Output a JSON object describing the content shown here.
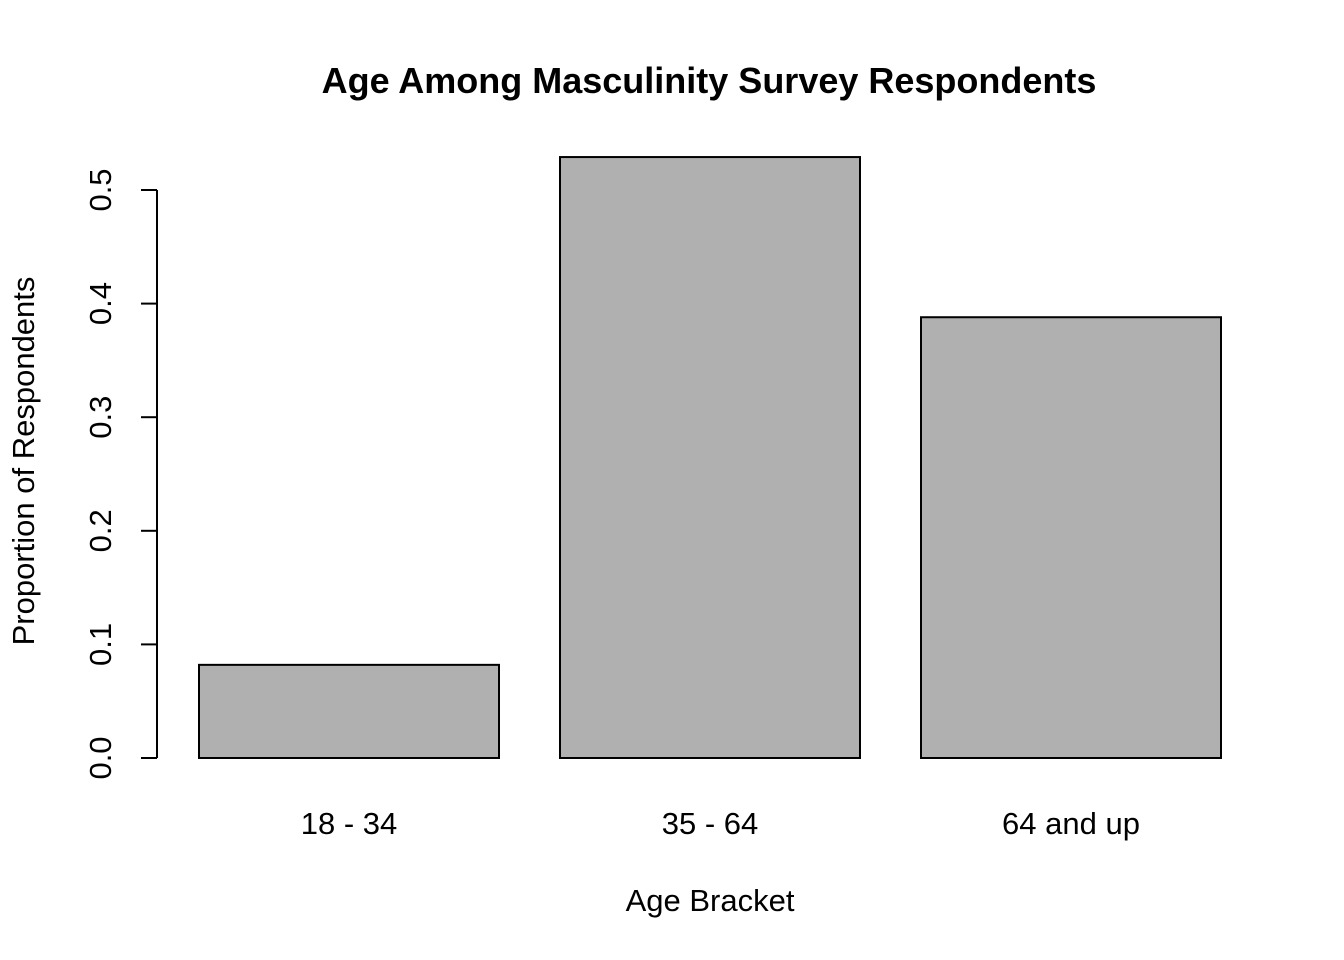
{
  "chart_data": {
    "type": "bar",
    "title": "Age Among Masculinity Survey Respondents",
    "xlabel": "Age Bracket",
    "ylabel": "Proportion of Respondents",
    "categories": [
      "18 - 34",
      "35 - 64",
      "64 and up"
    ],
    "values": [
      0.082,
      0.529,
      0.388
    ],
    "ylim": [
      0,
      0.5
    ],
    "yticks": [
      "0.0",
      "0.1",
      "0.2",
      "0.3",
      "0.4",
      "0.5"
    ],
    "bar_color": "#b0b0b0",
    "grid": false,
    "legend": "none"
  }
}
